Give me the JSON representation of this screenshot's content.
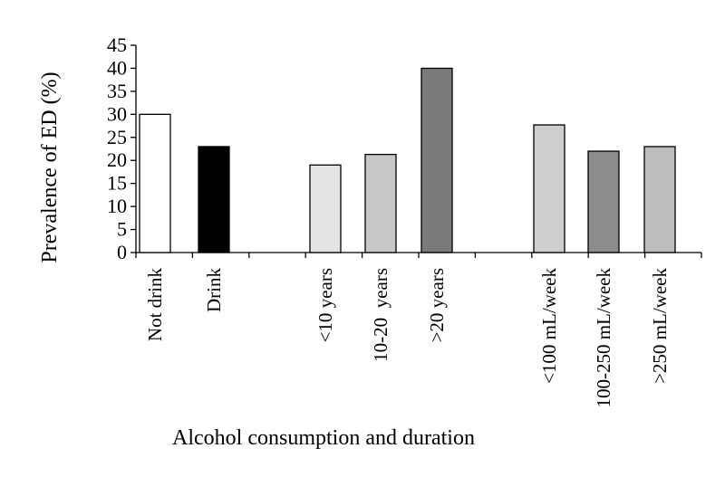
{
  "chart_data": {
    "type": "bar",
    "title": "",
    "ylabel": "Prevalence of ED (%)",
    "xlabel": "Alcohol consumption and duration",
    "ylim": [
      0,
      45
    ],
    "yticks": [
      0,
      5,
      10,
      15,
      20,
      25,
      30,
      35,
      40,
      45
    ],
    "grid": false,
    "legend": "none",
    "groups": [
      {
        "categories": [
          "Not drink",
          "Drink"
        ]
      },
      {
        "categories": [
          "<10 years",
          "10-20  years",
          ">20 years"
        ]
      },
      {
        "categories": [
          "<100 mL/week",
          "100-250 mL/week",
          ">250 mL/week"
        ]
      }
    ],
    "categories": [
      "Not drink",
      "Drink",
      "<10 years",
      "10-20  years",
      ">20 years",
      "<100 mL/week",
      "100-250 mL/week",
      ">250 mL/week"
    ],
    "values": [
      30,
      23,
      19,
      21.3,
      40,
      27.7,
      22,
      23
    ],
    "bar_fills": [
      "#ffffff",
      "#000000",
      "#e4e4e4",
      "#c8c8c8",
      "#7a7a7a",
      "#cfcfcf",
      "#8c8c8c",
      "#bdbdbd"
    ]
  }
}
